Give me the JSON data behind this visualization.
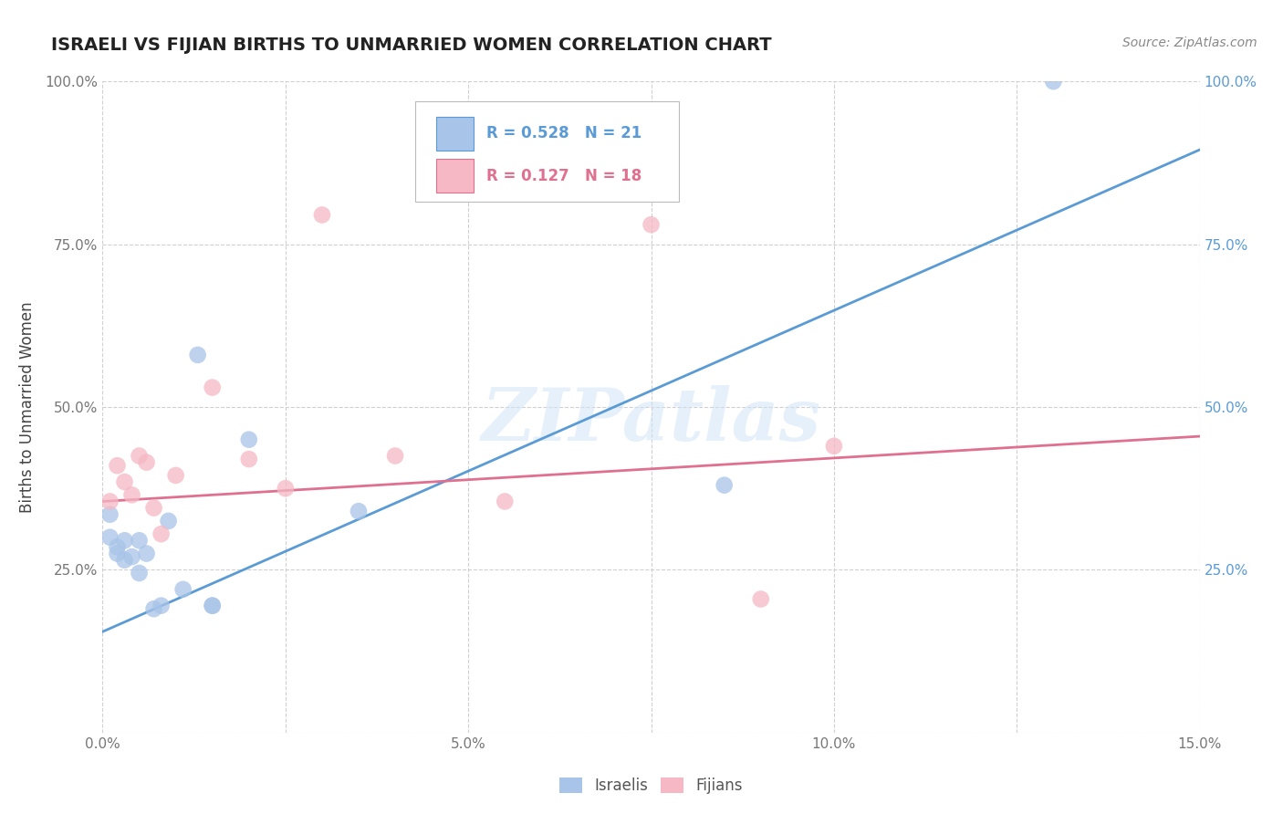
{
  "title": "ISRAELI VS FIJIAN BIRTHS TO UNMARRIED WOMEN CORRELATION CHART",
  "source": "Source: ZipAtlas.com",
  "ylabel_label": "Births to Unmarried Women",
  "xlim": [
    0.0,
    0.15
  ],
  "ylim": [
    0.0,
    1.0
  ],
  "blue_color": "#a8c4e8",
  "pink_color": "#f5b8c4",
  "blue_line_color": "#5b9bd5",
  "pink_line_color": "#e07090",
  "legend_blue_r": "R = 0.528",
  "legend_blue_n": "N = 21",
  "legend_pink_r": "R = 0.127",
  "legend_pink_n": "N = 18",
  "watermark": "ZIPatlas",
  "israelis_x": [
    0.001,
    0.001,
    0.002,
    0.002,
    0.003,
    0.003,
    0.004,
    0.005,
    0.005,
    0.006,
    0.007,
    0.008,
    0.009,
    0.011,
    0.013,
    0.015,
    0.015,
    0.02,
    0.035,
    0.085,
    0.13
  ],
  "israelis_y": [
    0.335,
    0.3,
    0.285,
    0.275,
    0.295,
    0.265,
    0.27,
    0.245,
    0.295,
    0.275,
    0.19,
    0.195,
    0.325,
    0.22,
    0.58,
    0.195,
    0.195,
    0.45,
    0.34,
    0.38,
    1.0
  ],
  "fijians_x": [
    0.001,
    0.002,
    0.003,
    0.004,
    0.005,
    0.006,
    0.007,
    0.008,
    0.01,
    0.015,
    0.02,
    0.025,
    0.03,
    0.04,
    0.055,
    0.075,
    0.09,
    0.1
  ],
  "fijians_y": [
    0.355,
    0.41,
    0.385,
    0.365,
    0.425,
    0.415,
    0.345,
    0.305,
    0.395,
    0.53,
    0.42,
    0.375,
    0.795,
    0.425,
    0.355,
    0.78,
    0.205,
    0.44
  ],
  "blue_line_x": [
    0.0,
    0.15
  ],
  "blue_line_y": [
    0.155,
    0.895
  ],
  "pink_line_x": [
    0.0,
    0.15
  ],
  "pink_line_y": [
    0.355,
    0.455
  ],
  "background_color": "#ffffff",
  "grid_color": "#d0d0d0",
  "y_tick_positions": [
    0.0,
    0.25,
    0.5,
    0.75,
    1.0
  ],
  "y_tick_labels_left": [
    "",
    "25.0%",
    "50.0%",
    "75.0%",
    "100.0%"
  ],
  "y_tick_labels_right": [
    "",
    "25.0%",
    "50.0%",
    "75.0%",
    "100.0%"
  ],
  "x_tick_positions": [
    0.0,
    0.025,
    0.05,
    0.075,
    0.1,
    0.125,
    0.15
  ],
  "x_tick_labels": [
    "0.0%",
    "",
    "5.0%",
    "",
    "10.0%",
    "",
    "15.0%"
  ]
}
